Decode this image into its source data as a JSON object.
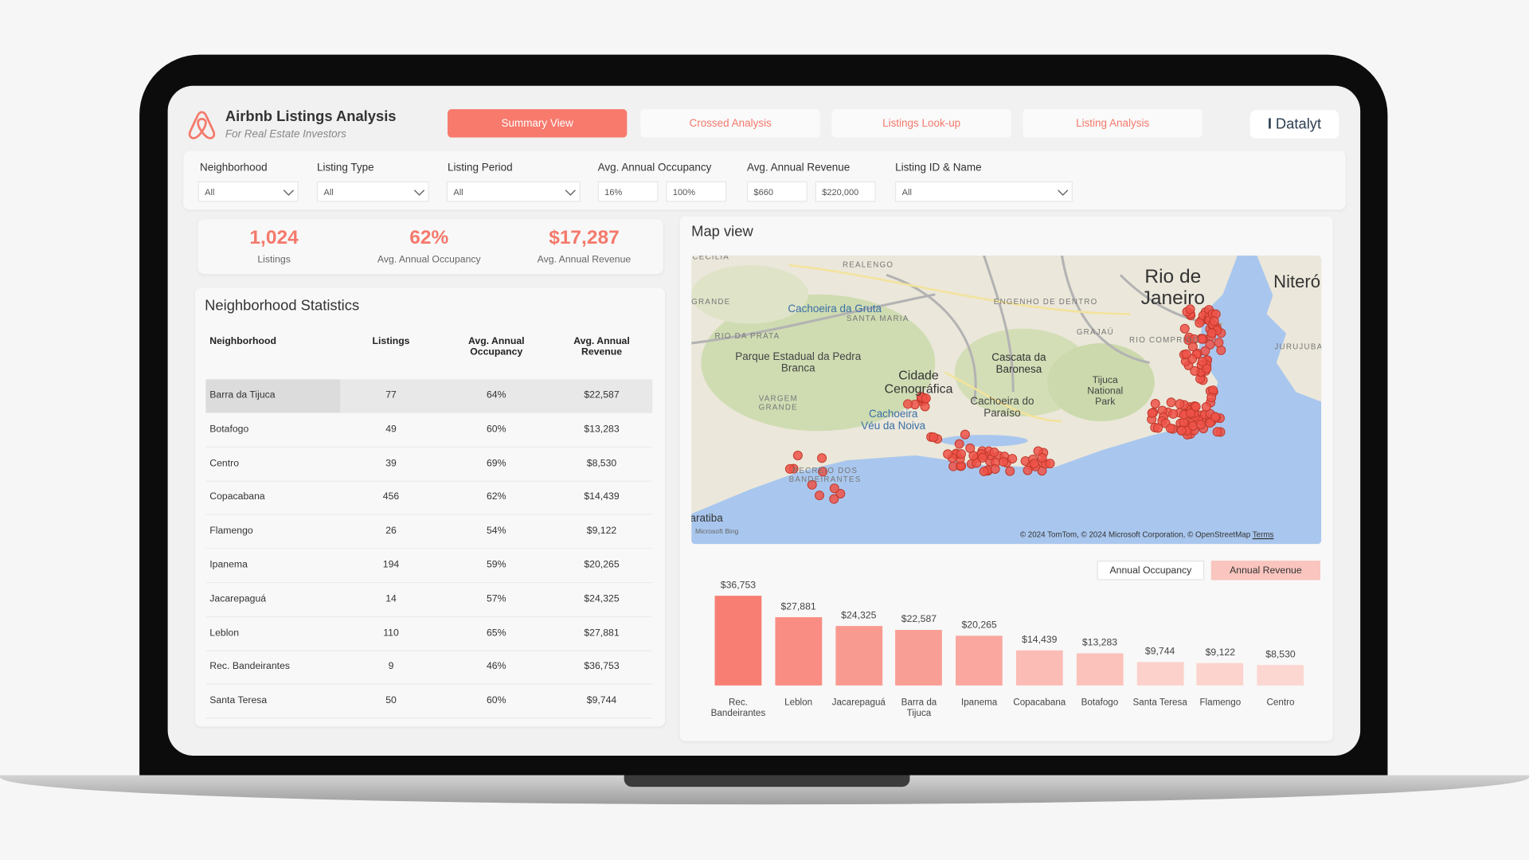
{
  "header": {
    "title": "Airbnb Listings Analysis",
    "subtitle": "For Real Estate Investors",
    "logo": "Datalyt"
  },
  "tabs": [
    "Summary View",
    "Crossed Analysis",
    "Listings Look-up",
    "Listing Analysis"
  ],
  "filters": [
    {
      "label": "Neighborhood",
      "values": [
        "All"
      ]
    },
    {
      "label": "Listing Type",
      "values": [
        "All"
      ]
    },
    {
      "label": "Listing Period",
      "values": [
        "All"
      ]
    },
    {
      "label": "Avg. Annual Occupancy",
      "values": [
        "16%",
        "100%"
      ]
    },
    {
      "label": "Avg. Annual Revenue",
      "values": [
        "$660",
        "$220,000"
      ]
    },
    {
      "label": "Listing ID & Name",
      "values": [
        "All"
      ]
    }
  ],
  "kpis": [
    {
      "value": "1,024",
      "label": "Listings"
    },
    {
      "value": "62%",
      "label": "Avg. Annual Occupancy"
    },
    {
      "value": "$17,287",
      "label": "Avg. Annual Revenue"
    }
  ],
  "table": {
    "title": "Neighborhood Statistics",
    "columns": [
      "Neighborhood",
      "Listings",
      "Avg. Annual Occupancy",
      "Avg. Annual Revenue"
    ],
    "rows": [
      [
        "Barra da Tijuca",
        "77",
        "64%",
        "$22,587"
      ],
      [
        "Botafogo",
        "49",
        "60%",
        "$13,283"
      ],
      [
        "Centro",
        "39",
        "69%",
        "$8,530"
      ],
      [
        "Copacabana",
        "456",
        "62%",
        "$14,439"
      ],
      [
        "Flamengo",
        "26",
        "54%",
        "$9,122"
      ],
      [
        "Ipanema",
        "194",
        "59%",
        "$20,265"
      ],
      [
        "Jacarepaguá",
        "14",
        "57%",
        "$24,325"
      ],
      [
        "Leblon",
        "110",
        "65%",
        "$27,881"
      ],
      [
        "Rec. Bandeirantes",
        "9",
        "46%",
        "$36,753"
      ],
      [
        "Santa Teresa",
        "50",
        "60%",
        "$9,744"
      ]
    ]
  },
  "map": {
    "title": "Map view",
    "labels": [
      [
        "Rio de",
        "Janeiro"
      ],
      [
        "Niterói"
      ],
      [
        "Cachoeira da Gruta"
      ],
      [
        "SANTA MARIA"
      ],
      [
        "Parque Estadual da Pedra",
        "Branca"
      ],
      [
        "Cidade",
        "Cenográfica"
      ],
      [
        "Cascata da",
        "Baronesa"
      ],
      [
        "Tijuca",
        "National",
        "Park"
      ],
      [
        "Cachoeira do",
        "Paraíso"
      ],
      [
        "Cachoeira",
        "Véu da Noiva"
      ],
      [
        "REALENGO"
      ],
      [
        "CECÍLIA"
      ],
      [
        "GRANDE"
      ],
      [
        "RIO DA PRATA"
      ],
      [
        "VARGEM",
        "GRANDE"
      ],
      [
        "ENGENHO DE DENTRO"
      ],
      [
        "GRAJAÚ"
      ],
      [
        "RIO COMPRIDO"
      ],
      [
        "JURUJUBA"
      ],
      [
        "RECREIO DOS",
        "BANDEIRANTES"
      ],
      [
        "Guaratiba"
      ]
    ],
    "attribution": "© 2024 TomTom, © 2024 Microsoft Corporation, © OpenStreetMap",
    "terms": "Terms",
    "provider": "Microsoft Bing"
  },
  "chart_data": {
    "type": "bar",
    "toggles": [
      "Annual Occupancy",
      "Annual Revenue"
    ],
    "categories": [
      "Rec. Bandeirantes",
      "Leblon",
      "Jacarepaguá",
      "Barra da Tijuca",
      "Ipanema",
      "Copacabana",
      "Botafogo",
      "Santa Teresa",
      "Flamengo",
      "Centro"
    ],
    "values": [
      36753,
      27881,
      24325,
      22587,
      20265,
      14439,
      13283,
      9744,
      9122,
      8530
    ],
    "value_labels": [
      "$36,753",
      "$27,881",
      "$24,325",
      "$22,587",
      "$20,265",
      "$14,439",
      "$13,283",
      "$9,744",
      "$9,122",
      "$8,530"
    ],
    "colors": [
      "#f87e73",
      "#f98d83",
      "#f99a91",
      "#f99e95",
      "#faa79f",
      "#fbbcb5",
      "#fbc2bb",
      "#fcd1cb",
      "#fcd3cd",
      "#fcd7d2"
    ]
  }
}
